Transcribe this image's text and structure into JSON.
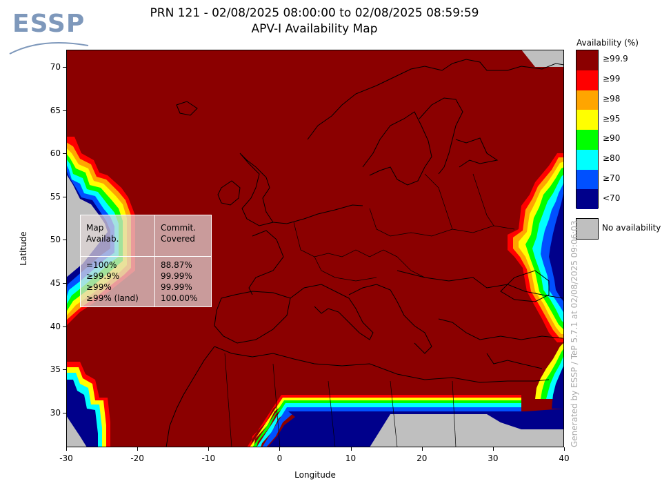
{
  "header": {
    "title": "PRN 121 - 02/08/2025 08:00:00 to 02/08/2025 08:59:59",
    "subtitle": "APV-I Availability Map"
  },
  "logo": {
    "text": "ESSP"
  },
  "map": {
    "x_axis": {
      "label": "Longitude",
      "range": [
        -30,
        40
      ],
      "ticks": [
        "-30",
        "-20",
        "-10",
        "0",
        "10",
        "20",
        "30",
        "40"
      ]
    },
    "y_axis": {
      "label": "Latitude",
      "range": [
        26,
        72
      ],
      "ticks": [
        "30",
        "35",
        "40",
        "45",
        "50",
        "55",
        "60",
        "65",
        "70"
      ]
    },
    "background_color": "#8b0000",
    "grid": false
  },
  "legend": {
    "title": "Availability (%)",
    "items": [
      {
        "label": "≥99.9",
        "color": "#8b0000"
      },
      {
        "label": "≥99",
        "color": "#ff0000"
      },
      {
        "label": "≥98",
        "color": "#ffa500"
      },
      {
        "label": "≥95",
        "color": "#ffff00"
      },
      {
        "label": "≥90",
        "color": "#00ff00"
      },
      {
        "label": "≥80",
        "color": "#00ffff"
      },
      {
        "label": "≥70",
        "color": "#0050ff"
      },
      {
        "label": "<70",
        "color": "#00008b"
      }
    ],
    "no_availability": {
      "label": "No availability",
      "color": "#bfbfbf"
    }
  },
  "stats_table": {
    "headers": [
      "Map\nAvailab.",
      "Commit.\nCovered"
    ],
    "rows": [
      [
        "=100%",
        "88.87%"
      ],
      [
        "≥99.9%",
        "99.99%"
      ],
      [
        "≥99%",
        "99.99%"
      ],
      [
        "≥99% (land)",
        "100.00%"
      ]
    ]
  },
  "credit": "Generated by ESSP / TeP 5.7.1 at 02/08/2025 09:06:03"
}
